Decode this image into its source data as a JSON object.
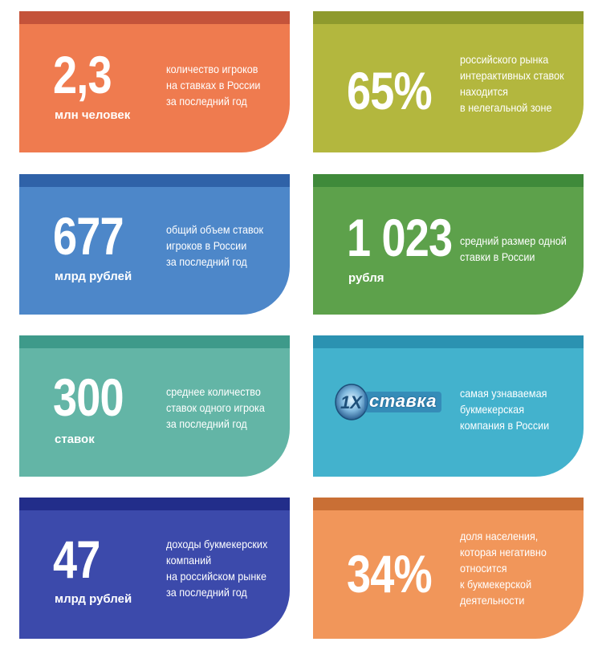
{
  "cards": [
    {
      "value": "2,3",
      "unit": "млн человек",
      "desc": [
        "количество игроков",
        "на ставках в России",
        "за последний год"
      ]
    },
    {
      "value": "65%",
      "unit": "",
      "desc": [
        "российского рынка",
        "интерактивных ставок",
        "находится",
        "в нелегальной зоне"
      ]
    },
    {
      "value": "677",
      "unit": "млрд рублей",
      "desc": [
        "общий объем ставок",
        "игроков в России",
        "за последний год"
      ]
    },
    {
      "value": "1 023",
      "unit": "рубля",
      "desc": [
        "средний размер одной",
        "ставки в России"
      ]
    },
    {
      "value": "300",
      "unit": "ставок",
      "desc": [
        "среднее количество",
        "ставок одного игрока",
        "за последний год"
      ]
    },
    {
      "value": "",
      "unit": "",
      "logo_text": "ставка",
      "logo_mark": "1X",
      "desc": [
        "самая узнаваемая",
        "букмекерская",
        "компания в России"
      ]
    },
    {
      "value": "47",
      "unit": "млрд рублей",
      "desc": [
        "доходы букмекерских",
        "компаний",
        "на российском рынке",
        "за последний год"
      ]
    },
    {
      "value": "34%",
      "unit": "",
      "desc": [
        "доля населения,",
        "которая негативно",
        "относится",
        "к букмекерской",
        "деятельности"
      ]
    }
  ],
  "colors": {
    "orange": "#ef7b4f",
    "olive": "#b3b73e",
    "blue": "#4d87c9",
    "green": "#5da14b",
    "teal": "#63b5a6",
    "cyan": "#43b2cd",
    "indigo": "#3c4aab",
    "light_orange": "#f1965a"
  },
  "icons": {
    "logo": "1x-stavka-logo"
  }
}
